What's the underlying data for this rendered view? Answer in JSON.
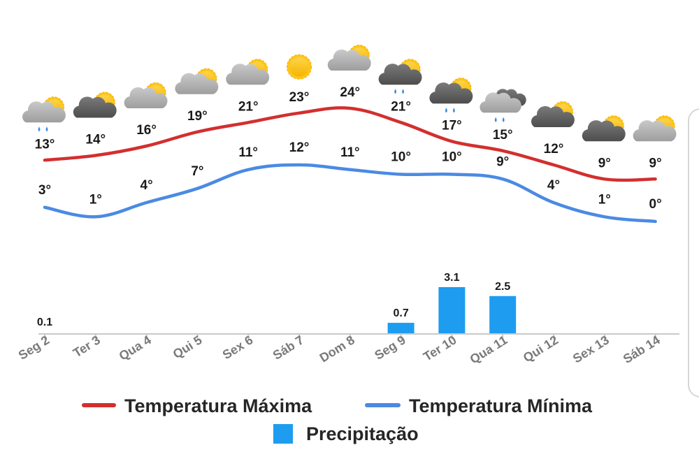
{
  "colors": {
    "max": "#d32f2f",
    "min": "#4a8ae3",
    "precip": "#1e9cf0",
    "axis": "#c9c9c9",
    "tick": "#7a7a7a",
    "text": "#1a1a1a"
  },
  "chart_data": {
    "type": "line+bar",
    "categories": [
      "Seg 2",
      "Ter 3",
      "Qua 4",
      "Qui 5",
      "Sex 6",
      "Sáb 7",
      "Dom 8",
      "Seg 9",
      "Ter 10",
      "Qua 11",
      "Qui 12",
      "Sex 13",
      "Sáb 14"
    ],
    "weather_icons": [
      "cloud-sun-rain-icon",
      "dark-cloud-sun-icon",
      "cloud-sun-icon",
      "cloud-sun-icon",
      "cloud-sun-icon",
      "sun-icon",
      "cloud-sun-icon",
      "dark-cloud-sun-rain-icon",
      "dark-cloud-sun-rain-icon",
      "clouds-rain-icon",
      "dark-cloud-sun-icon",
      "dark-cloud-sun-icon",
      "cloud-sun-icon"
    ],
    "series": [
      {
        "name": "Temperatura Máxima",
        "values": [
          13,
          14,
          16,
          19,
          21,
          23,
          24,
          21,
          17,
          15,
          12,
          9,
          9
        ],
        "labels": [
          "13°",
          "14°",
          "16°",
          "19°",
          "21°",
          "23°",
          "24°",
          "21°",
          "17°",
          "15°",
          "12°",
          "9°",
          "9°"
        ]
      },
      {
        "name": "Temperatura Mínima",
        "values": [
          3,
          1,
          4,
          7,
          11,
          12,
          11,
          10,
          10,
          9,
          4,
          1,
          0
        ],
        "labels": [
          "3°",
          "1°",
          "4°",
          "7°",
          "11°",
          "12°",
          "11°",
          "10°",
          "10°",
          "9°",
          "4°",
          "1°",
          "0°"
        ]
      },
      {
        "name": "Precipitação",
        "values": [
          0.1,
          0,
          0,
          0,
          0,
          0,
          0,
          0.7,
          3.1,
          2.5,
          0,
          0,
          0
        ],
        "labels": [
          "0.1",
          "",
          "",
          "",
          "",
          "",
          "",
          "0.7",
          "3.1",
          "2.5",
          "",
          "",
          ""
        ]
      }
    ],
    "legend": [
      "Temperatura Máxima",
      "Temperatura Mínima",
      "Precipitação"
    ],
    "legend_position": "bottom"
  }
}
